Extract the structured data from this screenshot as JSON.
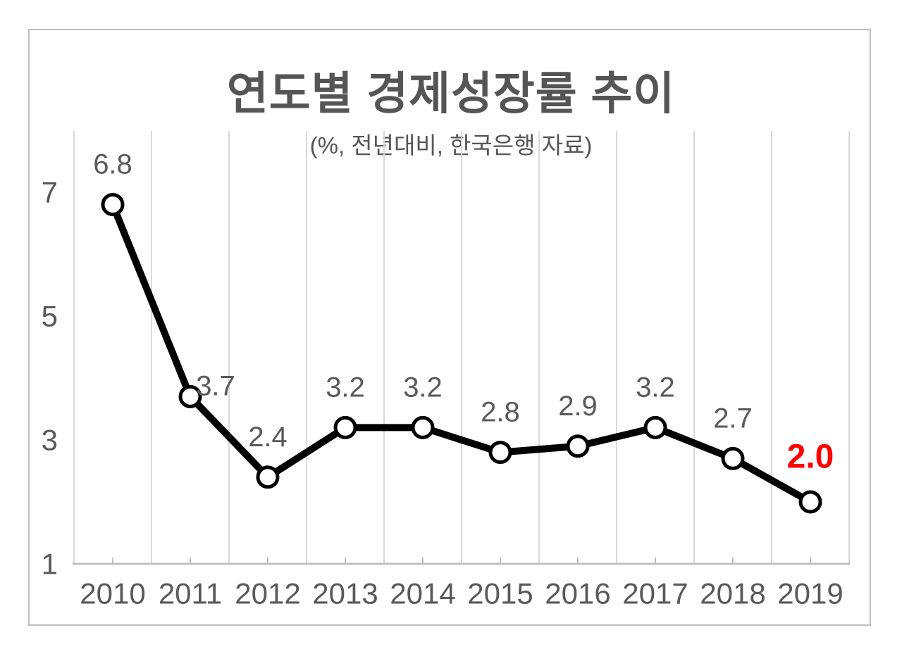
{
  "chart_data": {
    "type": "line",
    "title": "연도별 경제성장률 추이",
    "subtitle": "(%, 전년대비, 한국은행 자료)",
    "categories": [
      "2010",
      "2011",
      "2012",
      "2013",
      "2014",
      "2015",
      "2016",
      "2017",
      "2018",
      "2019"
    ],
    "values": [
      6.8,
      3.7,
      2.4,
      3.2,
      3.2,
      2.8,
      2.9,
      3.2,
      2.7,
      2.0
    ],
    "data_labels": [
      "6.8",
      "3.7",
      "2.4",
      "3.2",
      "3.2",
      "2.8",
      "2.9",
      "3.2",
      "2.7",
      "2.0"
    ],
    "xlabel": "",
    "ylabel": "",
    "ylim": [
      1,
      8
    ],
    "y_tick_values": [
      7,
      5,
      3,
      1
    ],
    "y_tick_labels": [
      "7",
      "5",
      "3",
      "1"
    ],
    "grid": "vertical-only",
    "legend": "none",
    "highlight": {
      "index": 9,
      "color": "#FF0000"
    },
    "colors": {
      "line": "#000000",
      "marker_fill": "#FFFFFF",
      "marker_stroke": "#000000",
      "data_label": "#595959",
      "axis_label": "#595959",
      "title": "#555555",
      "gridline": "#D9D9D9",
      "axis_line": "#BFBFBF",
      "border": "#BFBFBF",
      "background": "#FFFFFF"
    },
    "label_offset_default": [
      0,
      -57
    ],
    "label_offsets": {
      "1": [
        36,
        -15
      ],
      "9": [
        0,
        -64
      ]
    }
  }
}
